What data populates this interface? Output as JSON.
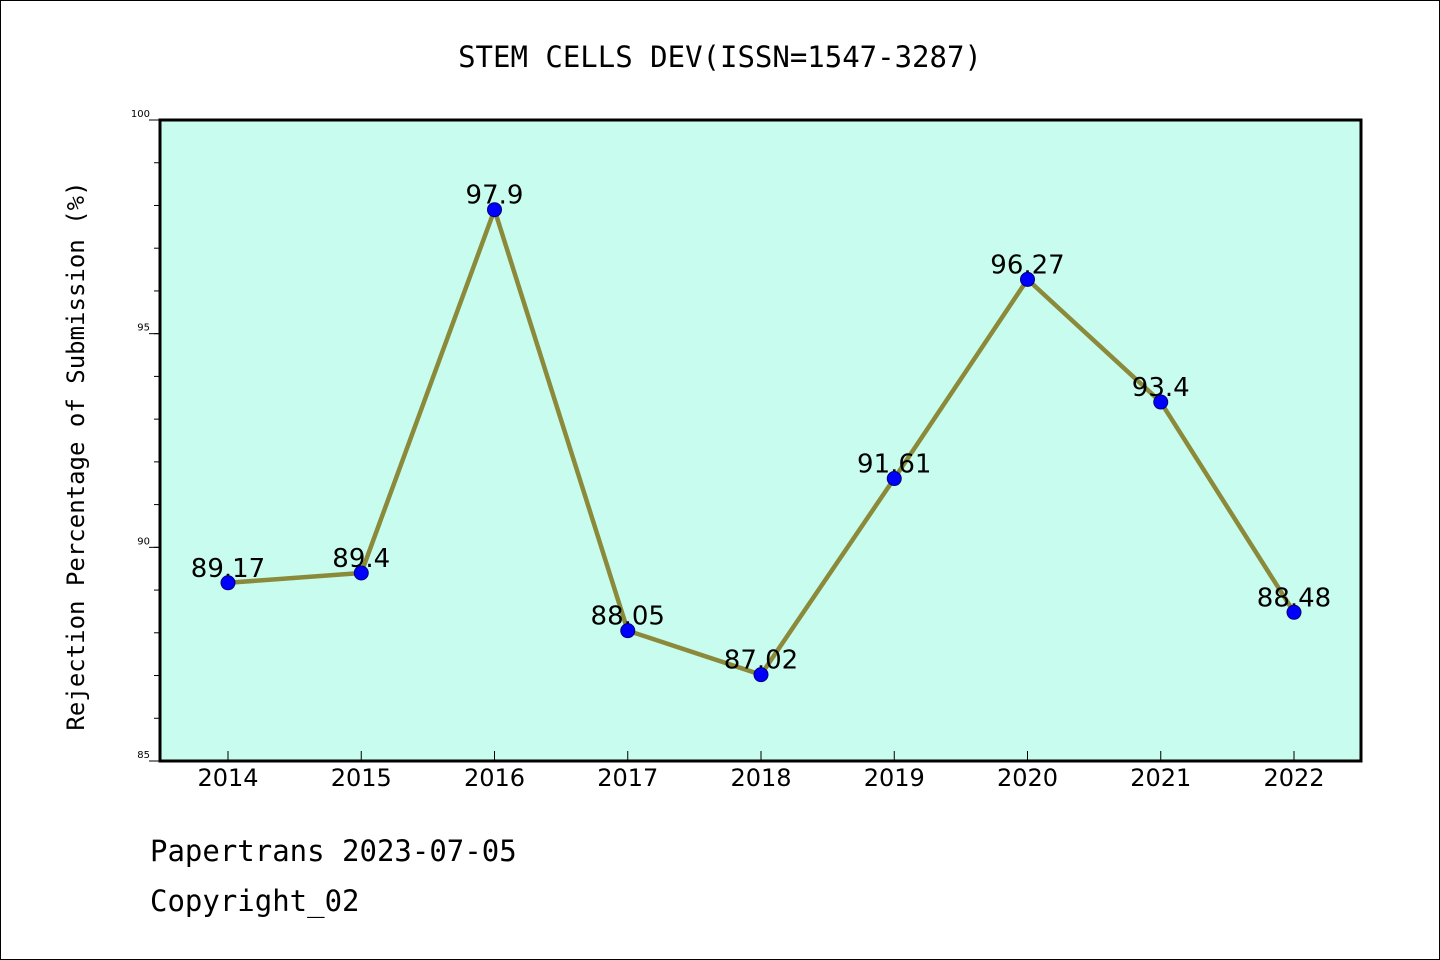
{
  "chart_data": {
    "type": "line",
    "title": "STEM CELLS DEV(ISSN=1547-3287)",
    "xlabel": "",
    "ylabel": "Rejection Percentage of Submission (%)",
    "categories": [
      "2014",
      "2015",
      "2016",
      "2017",
      "2018",
      "2019",
      "2020",
      "2021",
      "2022"
    ],
    "series": [
      {
        "values": [
          89.17,
          89.4,
          97.9,
          88.05,
          87.02,
          91.61,
          96.27,
          93.4,
          88.48
        ],
        "labels": [
          "89.17",
          "89.4",
          "97.9",
          "88.05",
          "87.02",
          "91.61",
          "96.27",
          "93.4",
          "88.48"
        ]
      }
    ],
    "ylim": [
      85,
      100
    ],
    "yticks": [
      85,
      90,
      95,
      100
    ],
    "ytick_labels": [
      "85",
      "90",
      "95",
      "100"
    ],
    "y_minor_step": 1,
    "grid": false,
    "colors": {
      "plot_background": "#c8fcee",
      "line": "#8b8a3a",
      "marker": "#0000ff",
      "marker_edge": "#00007a",
      "axes": "#000000"
    }
  },
  "footer": {
    "line1": "Papertrans 2023-07-05",
    "line2": "Copyright_02"
  }
}
